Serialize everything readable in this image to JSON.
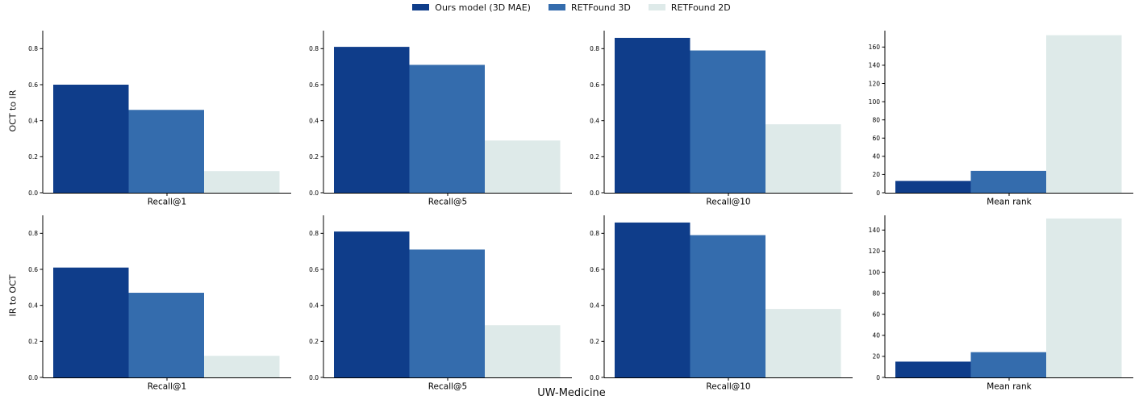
{
  "figure": {
    "title": "UW-Medicine",
    "row_labels": [
      "OCT to IR",
      "IR to OCT"
    ],
    "legend": [
      {
        "name": "Ours model (3D MAE)",
        "color": "#0f3d8a"
      },
      {
        "name": "RETFound 3D",
        "color": "#346cad"
      },
      {
        "name": "RETFound 2D",
        "color": "#deeae9"
      }
    ]
  },
  "chart_data": [
    {
      "type": "bar",
      "row": "OCT to IR",
      "categories": [
        "Recall@1"
      ],
      "xlabel": "Recall@1",
      "ylim": [
        0,
        0.9
      ],
      "yticks": [
        0.0,
        0.2,
        0.4,
        0.6,
        0.8
      ],
      "ytick_labels": [
        "0.0",
        "0.2",
        "0.4",
        "0.6",
        "0.8"
      ],
      "series": [
        {
          "name": "Ours model (3D MAE)",
          "values": [
            0.6
          ]
        },
        {
          "name": "RETFound 3D",
          "values": [
            0.46
          ]
        },
        {
          "name": "RETFound 2D",
          "values": [
            0.12
          ]
        }
      ]
    },
    {
      "type": "bar",
      "row": "OCT to IR",
      "categories": [
        "Recall@5"
      ],
      "xlabel": "Recall@5",
      "ylim": [
        0,
        0.9
      ],
      "yticks": [
        0.0,
        0.2,
        0.4,
        0.6,
        0.8
      ],
      "ytick_labels": [
        "0.0",
        "0.2",
        "0.4",
        "0.6",
        "0.8"
      ],
      "series": [
        {
          "name": "Ours model (3D MAE)",
          "values": [
            0.81
          ]
        },
        {
          "name": "RETFound 3D",
          "values": [
            0.71
          ]
        },
        {
          "name": "RETFound 2D",
          "values": [
            0.29
          ]
        }
      ]
    },
    {
      "type": "bar",
      "row": "OCT to IR",
      "categories": [
        "Recall@10"
      ],
      "xlabel": "Recall@10",
      "ylim": [
        0,
        0.9
      ],
      "yticks": [
        0.0,
        0.2,
        0.4,
        0.6,
        0.8
      ],
      "ytick_labels": [
        "0.0",
        "0.2",
        "0.4",
        "0.6",
        "0.8"
      ],
      "series": [
        {
          "name": "Ours model (3D MAE)",
          "values": [
            0.86
          ]
        },
        {
          "name": "RETFound 3D",
          "values": [
            0.79
          ]
        },
        {
          "name": "RETFound 2D",
          "values": [
            0.38
          ]
        }
      ]
    },
    {
      "type": "bar",
      "row": "OCT to IR",
      "categories": [
        "Mean rank"
      ],
      "xlabel": "Mean rank",
      "ylim": [
        0,
        178
      ],
      "yticks": [
        0,
        20,
        40,
        60,
        80,
        100,
        120,
        140,
        160
      ],
      "ytick_labels": [
        "0",
        "20",
        "40",
        "60",
        "80",
        "100",
        "120",
        "140",
        "160"
      ],
      "series": [
        {
          "name": "Ours model (3D MAE)",
          "values": [
            13
          ]
        },
        {
          "name": "RETFound 3D",
          "values": [
            24
          ]
        },
        {
          "name": "RETFound 2D",
          "values": [
            173
          ]
        }
      ]
    },
    {
      "type": "bar",
      "row": "IR to OCT",
      "categories": [
        "Recall@1"
      ],
      "xlabel": "Recall@1",
      "ylim": [
        0,
        0.9
      ],
      "yticks": [
        0.0,
        0.2,
        0.4,
        0.6,
        0.8
      ],
      "ytick_labels": [
        "0.0",
        "0.2",
        "0.4",
        "0.6",
        "0.8"
      ],
      "series": [
        {
          "name": "Ours model (3D MAE)",
          "values": [
            0.61
          ]
        },
        {
          "name": "RETFound 3D",
          "values": [
            0.47
          ]
        },
        {
          "name": "RETFound 2D",
          "values": [
            0.12
          ]
        }
      ]
    },
    {
      "type": "bar",
      "row": "IR to OCT",
      "categories": [
        "Recall@5"
      ],
      "xlabel": "Recall@5",
      "ylim": [
        0,
        0.9
      ],
      "yticks": [
        0.0,
        0.2,
        0.4,
        0.6,
        0.8
      ],
      "ytick_labels": [
        "0.0",
        "0.2",
        "0.4",
        "0.6",
        "0.8"
      ],
      "series": [
        {
          "name": "Ours model (3D MAE)",
          "values": [
            0.81
          ]
        },
        {
          "name": "RETFound 3D",
          "values": [
            0.71
          ]
        },
        {
          "name": "RETFound 2D",
          "values": [
            0.29
          ]
        }
      ]
    },
    {
      "type": "bar",
      "row": "IR to OCT",
      "categories": [
        "Recall@10"
      ],
      "xlabel": "Recall@10",
      "ylim": [
        0,
        0.9
      ],
      "yticks": [
        0.0,
        0.2,
        0.4,
        0.6,
        0.8
      ],
      "ytick_labels": [
        "0.0",
        "0.2",
        "0.4",
        "0.6",
        "0.8"
      ],
      "series": [
        {
          "name": "Ours model (3D MAE)",
          "values": [
            0.86
          ]
        },
        {
          "name": "RETFound 3D",
          "values": [
            0.79
          ]
        },
        {
          "name": "RETFound 2D",
          "values": [
            0.38
          ]
        }
      ]
    },
    {
      "type": "bar",
      "row": "IR to OCT",
      "categories": [
        "Mean rank"
      ],
      "xlabel": "Mean rank",
      "ylim": [
        0,
        154
      ],
      "yticks": [
        0,
        20,
        40,
        60,
        80,
        100,
        120,
        140
      ],
      "ytick_labels": [
        "0",
        "20",
        "40",
        "60",
        "80",
        "100",
        "120",
        "140"
      ],
      "series": [
        {
          "name": "Ours model (3D MAE)",
          "values": [
            15
          ]
        },
        {
          "name": "RETFound 3D",
          "values": [
            24
          ]
        },
        {
          "name": "RETFound 2D",
          "values": [
            151
          ]
        }
      ]
    }
  ]
}
